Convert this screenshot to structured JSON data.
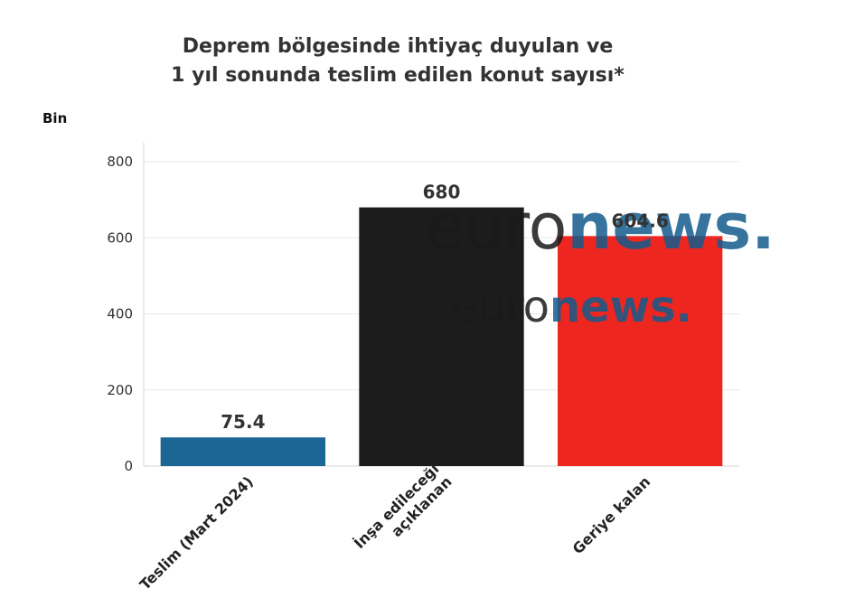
{
  "chart_data": {
    "type": "bar",
    "title_lines": [
      "Deprem bölgesinde ihtiyaç duyulan ve",
      "1 yıl sonunda teslim edilen konut sayısı*"
    ],
    "ylabel": "Bin",
    "categories": [
      [
        "Teslim (Mart 2024)"
      ],
      [
        "İnşa edileceği",
        "açıklanan"
      ],
      [
        "Geriye kalan"
      ]
    ],
    "values": [
      75.4,
      680,
      604.6
    ],
    "data_labels": [
      "75.4",
      "680",
      "604.6"
    ],
    "colors": [
      "#1b6694",
      "#1c1c1c",
      "#ee2620"
    ],
    "ylim": [
      0,
      850
    ],
    "yticks": [
      0,
      200,
      400,
      600,
      800
    ],
    "grid": true
  },
  "watermark": {
    "brand_dark": "euro",
    "brand_blue": "news",
    "dot": ".",
    "color_dark": "#1a1a1a",
    "color_blue": "#135c8c"
  }
}
